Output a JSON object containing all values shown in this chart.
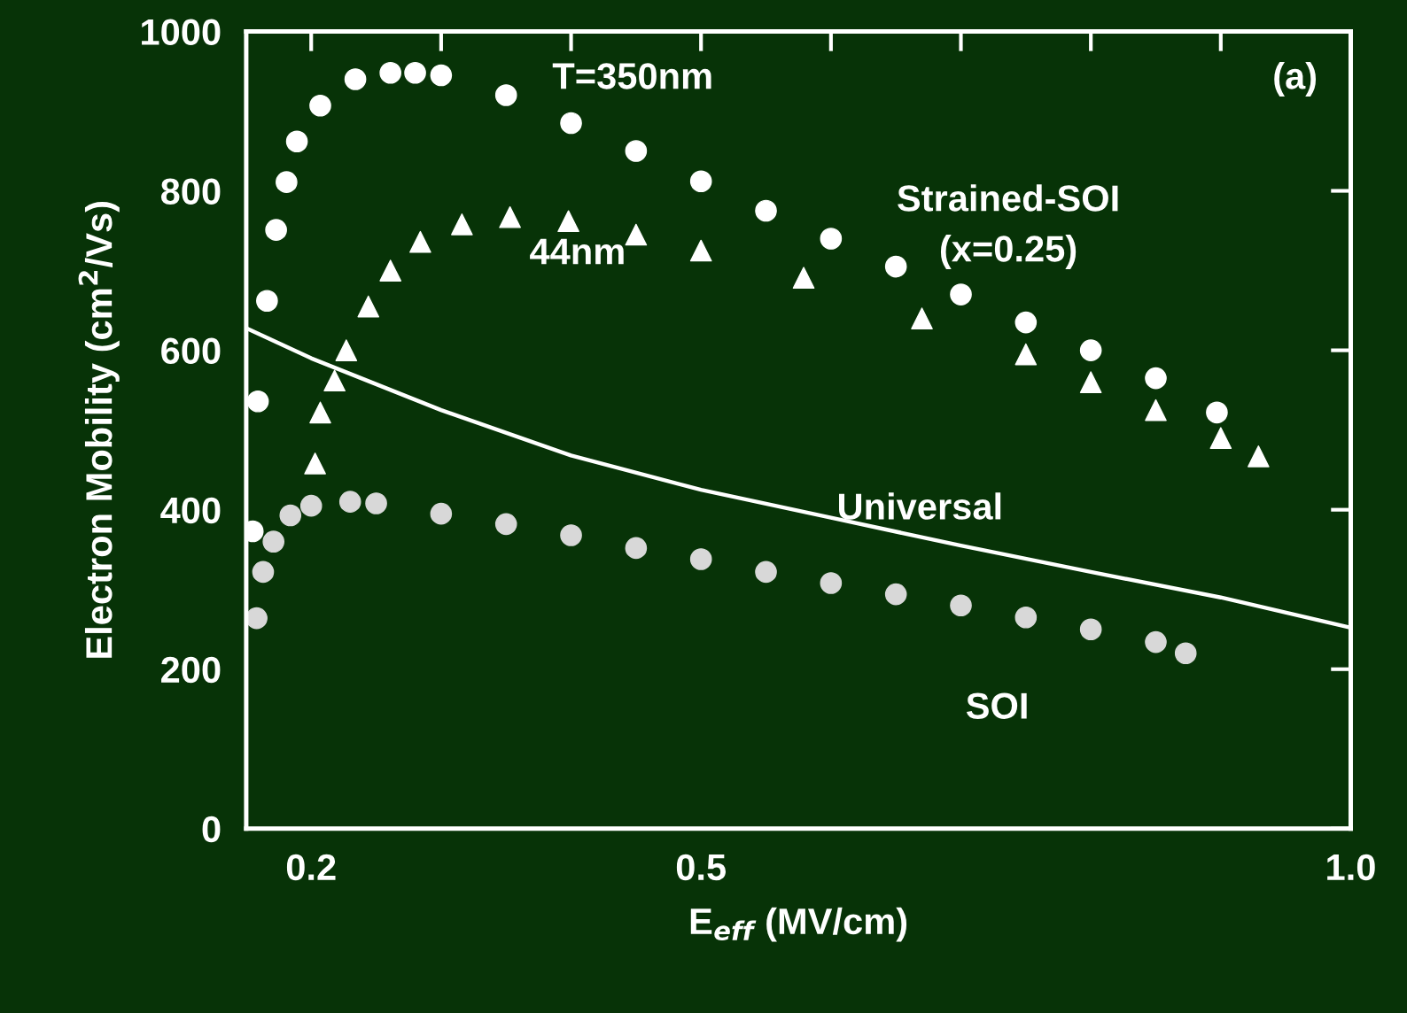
{
  "chart_data": {
    "type": "scatter",
    "xlabel": "E$_{eff}$ (MV/cm)",
    "ylabel": "Electron Mobility (cm$^{2}$/Vs)",
    "xlim": [
      0.15,
      1.0
    ],
    "xticks": [
      0.2,
      {
        "value": 0.3,
        "label": null
      },
      {
        "value": 0.4,
        "label": null
      },
      0.5,
      {
        "value": 0.6,
        "label": null
      },
      {
        "value": 0.7,
        "label": null
      },
      {
        "value": 0.8,
        "label": null
      },
      {
        "value": 0.9,
        "label": null
      },
      {
        "value": 1.0,
        "label": "1.0"
      }
    ],
    "ylim": [
      0,
      1000
    ],
    "yticks": [
      0,
      200,
      400,
      600,
      800,
      1000
    ],
    "grid": false,
    "series": [
      {
        "marker": "circle",
        "color": "#ffffff",
        "x": [
          0.155,
          0.159,
          0.166,
          0.173,
          0.181,
          0.189,
          0.207,
          0.234,
          0.261,
          0.28,
          0.3,
          0.35,
          0.4,
          0.45,
          0.5,
          0.55,
          0.6,
          0.65,
          0.7,
          0.75,
          0.8,
          0.85,
          0.897
        ],
        "values": [
          373,
          536,
          662,
          751,
          811,
          862,
          907,
          940,
          948,
          948,
          945,
          920,
          885,
          850,
          812,
          775,
          740,
          705,
          670,
          635,
          600,
          565,
          522
        ]
      },
      {
        "marker": "triangle",
        "color": "#ffffff",
        "x": [
          0.203,
          0.207,
          0.218,
          0.227,
          0.244,
          0.261,
          0.284,
          0.316,
          0.353,
          0.398,
          0.45,
          0.5,
          0.579,
          0.67,
          0.75,
          0.8,
          0.85,
          0.9,
          0.929
        ],
        "values": [
          458,
          522,
          562,
          600,
          655,
          700,
          736,
          758,
          767,
          762,
          745,
          725,
          691,
          640,
          595,
          560,
          525,
          490,
          467
        ]
      },
      {
        "type": "line",
        "color": "#ffffff",
        "x": [
          0.151,
          0.2,
          0.3,
          0.4,
          0.5,
          0.6,
          0.7,
          0.8,
          0.9,
          1.0
        ],
        "values": [
          627,
          590,
          525,
          468,
          425,
          390,
          355,
          322,
          290,
          252
        ]
      },
      {
        "marker": "circle",
        "color": "#d8d8d8",
        "x": [
          0.158,
          0.163,
          0.171,
          0.184,
          0.2,
          0.23,
          0.25,
          0.3,
          0.35,
          0.4,
          0.45,
          0.5,
          0.55,
          0.6,
          0.65,
          0.7,
          0.75,
          0.8,
          0.85,
          0.873
        ],
        "values": [
          264,
          322,
          360,
          393,
          405,
          410,
          408,
          395,
          382,
          368,
          352,
          338,
          322,
          308,
          294,
          280,
          265,
          250,
          234,
          220
        ]
      }
    ],
    "annotations": [
      "T=350nm",
      "44nm",
      "Strained-SOI\n(x=0.25)",
      "Universal",
      "SOI",
      "(a)"
    ]
  }
}
